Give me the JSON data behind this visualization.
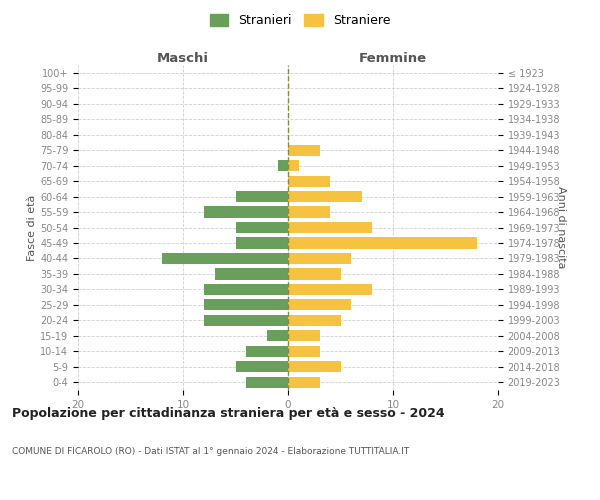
{
  "age_groups": [
    "100+",
    "95-99",
    "90-94",
    "85-89",
    "80-84",
    "75-79",
    "70-74",
    "65-69",
    "60-64",
    "55-59",
    "50-54",
    "45-49",
    "40-44",
    "35-39",
    "30-34",
    "25-29",
    "20-24",
    "15-19",
    "10-14",
    "5-9",
    "0-4"
  ],
  "birth_years": [
    "≤ 1923",
    "1924-1928",
    "1929-1933",
    "1934-1938",
    "1939-1943",
    "1944-1948",
    "1949-1953",
    "1954-1958",
    "1959-1963",
    "1964-1968",
    "1969-1973",
    "1974-1978",
    "1979-1983",
    "1984-1988",
    "1989-1993",
    "1994-1998",
    "1999-2003",
    "2004-2008",
    "2009-2013",
    "2014-2018",
    "2019-2023"
  ],
  "maschi": [
    0,
    0,
    0,
    0,
    0,
    0,
    1,
    0,
    5,
    8,
    5,
    5,
    12,
    7,
    8,
    8,
    8,
    2,
    4,
    5,
    4
  ],
  "femmine": [
    0,
    0,
    0,
    0,
    0,
    3,
    1,
    4,
    7,
    4,
    8,
    18,
    6,
    5,
    8,
    6,
    5,
    3,
    3,
    5,
    3
  ],
  "color_maschi": "#6a9e5b",
  "color_femmine": "#f5c242",
  "title": "Popolazione per cittadinanza straniera per età e sesso - 2024",
  "subtitle": "COMUNE DI FICAROLO (RO) - Dati ISTAT al 1° gennaio 2024 - Elaborazione TUTTITALIA.IT",
  "label_left": "Maschi",
  "label_right": "Femmine",
  "ylabel_left": "Fasce di età",
  "ylabel_right": "Anni di nascita",
  "legend_maschi": "Stranieri",
  "legend_femmine": "Straniere",
  "xlim": 20,
  "background_color": "#ffffff",
  "grid_color": "#d0d0d0"
}
